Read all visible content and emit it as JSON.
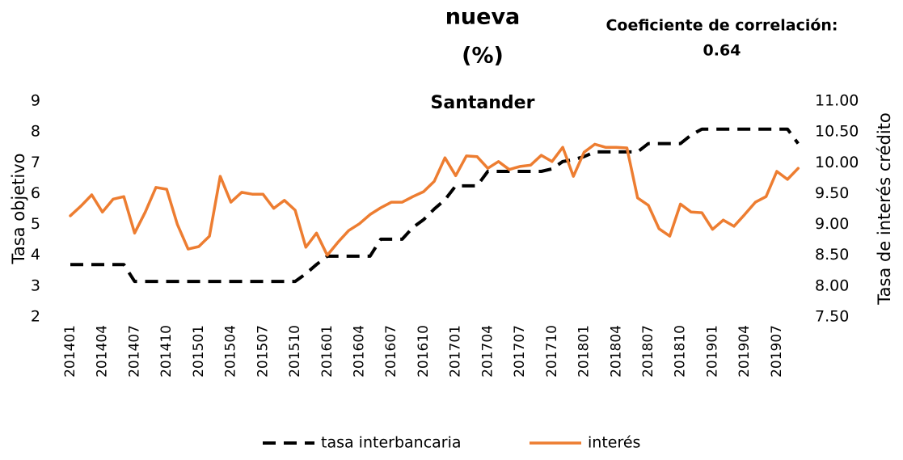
{
  "chart_data": {
    "type": "line",
    "title_lines": [
      "nueva",
      "(%)"
    ],
    "subtitle": "Santander",
    "annotation_lines": [
      "Coeficiente de correlación:",
      "0.64"
    ],
    "y_label": "Tasa objetivo",
    "y2_label": "Tasa de interés crédito",
    "categories": [
      "201401",
      null,
      null,
      "201404",
      null,
      null,
      "201407",
      null,
      null,
      "201410",
      null,
      null,
      "201501",
      null,
      null,
      "201504",
      null,
      null,
      "201507",
      null,
      null,
      "201510",
      null,
      null,
      "201601",
      null,
      null,
      "201604",
      null,
      null,
      "201607",
      null,
      null,
      "201610",
      null,
      null,
      "201701",
      null,
      null,
      "201704",
      null,
      null,
      "201707",
      null,
      null,
      "201710",
      null,
      null,
      "201801",
      null,
      null,
      "201804",
      null,
      null,
      "201807",
      null,
      null,
      "201810",
      null,
      null,
      "201901",
      null,
      null,
      "201904",
      null,
      null,
      "201907",
      null,
      null
    ],
    "ylim": [
      2,
      9
    ],
    "yticks": [
      2,
      3,
      4,
      5,
      6,
      7,
      8,
      9
    ],
    "y2lim": [
      7.5,
      11
    ],
    "y2ticks": [
      {
        "value": 7.5,
        "label": "7.50"
      },
      {
        "value": 8,
        "label": "8.00"
      },
      {
        "value": 8.5,
        "label": "8.50"
      },
      {
        "value": 9,
        "label": "9.00"
      },
      {
        "value": 9.5,
        "label": "9.50"
      },
      {
        "value": 10,
        "label": "10.00"
      },
      {
        "value": 10.5,
        "label": "10.50"
      },
      {
        "value": 11,
        "label": "11.00"
      }
    ],
    "grid": false,
    "legend": "bottom",
    "series": [
      {
        "name": "tasa interbancaria",
        "color": "#000000",
        "dash": true,
        "axis": "y",
        "values": [
          3.7,
          3.7,
          3.7,
          3.7,
          3.7,
          3.7,
          3.15,
          3.15,
          3.15,
          3.15,
          3.15,
          3.15,
          3.15,
          3.15,
          3.15,
          3.15,
          3.15,
          3.15,
          3.15,
          3.15,
          3.15,
          3.15,
          3.4,
          3.7,
          3.97,
          3.97,
          3.97,
          3.97,
          3.97,
          4.52,
          4.52,
          4.52,
          4.9,
          5.15,
          5.5,
          5.8,
          6.25,
          6.25,
          6.25,
          6.72,
          6.72,
          6.72,
          6.72,
          6.72,
          6.72,
          6.8,
          7.04,
          7.1,
          7.2,
          7.35,
          7.35,
          7.35,
          7.35,
          7.35,
          7.62,
          7.62,
          7.62,
          7.62,
          7.9,
          8.09,
          8.09,
          8.09,
          8.09,
          8.09,
          8.09,
          8.09,
          8.09,
          8.09,
          7.62
        ]
      },
      {
        "name": "interés",
        "color": "#ed7d31",
        "dash": false,
        "axis": "y2",
        "values": [
          9.14,
          9.3,
          9.48,
          9.2,
          9.41,
          9.45,
          8.86,
          9.2,
          9.6,
          9.57,
          9.0,
          8.6,
          8.64,
          8.81,
          9.78,
          9.36,
          9.52,
          9.49,
          9.49,
          9.26,
          9.39,
          9.23,
          8.63,
          8.86,
          8.5,
          8.71,
          8.9,
          9.01,
          9.16,
          9.27,
          9.36,
          9.36,
          9.45,
          9.53,
          9.7,
          10.08,
          9.79,
          10.11,
          10.1,
          9.91,
          10.02,
          9.89,
          9.94,
          9.96,
          10.12,
          10.02,
          10.25,
          9.78,
          10.17,
          10.3,
          10.25,
          10.25,
          10.24,
          9.43,
          9.31,
          8.93,
          8.81,
          9.33,
          9.2,
          9.19,
          8.92,
          9.07,
          8.97,
          9.16,
          9.36,
          9.45,
          9.86,
          9.73,
          9.91
        ]
      }
    ]
  }
}
